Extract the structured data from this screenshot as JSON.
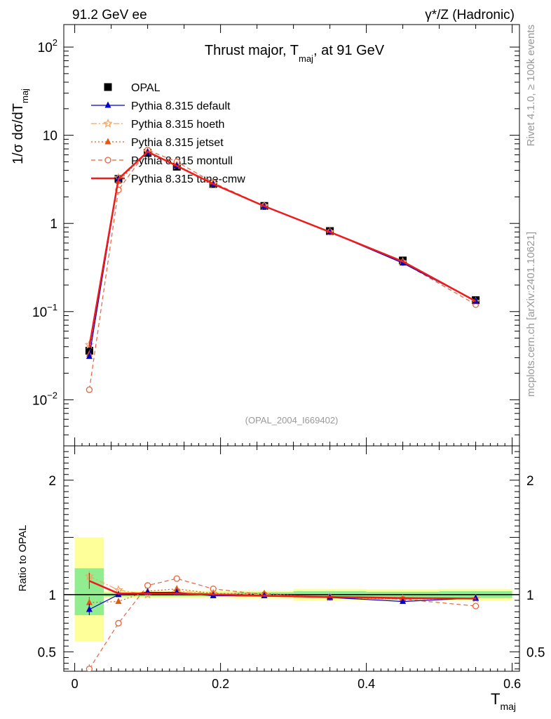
{
  "header": {
    "left": "91.2 GeV ee",
    "right": "γ*/Z (Hadronic)"
  },
  "side": {
    "rivet": "Rivet 4.1.0, ≥ 100k events",
    "mcplots": "mcplots.cern.ch [arXiv:2401.10621]"
  },
  "colors": {
    "opal": "#000000",
    "default": "#0000cc",
    "hoeth": "#f4a460",
    "jetset": "#e05a14",
    "montull": "#e8643c",
    "tunecmw": "#ee1c1c",
    "band_inner": "#90ee90",
    "band_outer": "#ffff99"
  },
  "chart_data": {
    "type": "line",
    "title_main": "Thrust major, T",
    "title_sub": "maj",
    "title_end": ", at 91 GeV",
    "analysis_tag": "(OPAL_2004_I669402)",
    "ylabel_main": "1/σ  dσ/dT",
    "ylabel_sub": "maj",
    "xlabel_main": "T",
    "xlabel_sub": "maj",
    "ratio_ylabel": "Ratio to OPAL",
    "xlim": [
      -0.015,
      0.61
    ],
    "ylim_log": [
      0.003,
      180
    ],
    "ratio_ylim": [
      0.33,
      2.3
    ],
    "main_yticks": [
      {
        "v": 0.01,
        "b": "10",
        "e": "−2"
      },
      {
        "v": 0.1,
        "b": "10",
        "e": "−1"
      },
      {
        "v": 1,
        "b": "1",
        "e": ""
      },
      {
        "v": 10,
        "b": "10",
        "e": ""
      },
      {
        "v": 100,
        "b": "10",
        "e": "2"
      }
    ],
    "ratio_yticks": [
      {
        "v": 0.5,
        "label": "0.5"
      },
      {
        "v": 1,
        "label": "1"
      },
      {
        "v": 2,
        "label": "2"
      }
    ],
    "xticks": [
      {
        "v": 0,
        "label": "0"
      },
      {
        "v": 0.2,
        "label": "0.2"
      },
      {
        "v": 0.4,
        "label": "0.4"
      },
      {
        "v": 0.6,
        "label": "0.6"
      }
    ],
    "x": [
      0.02,
      0.06,
      0.1,
      0.14,
      0.19,
      0.26,
      0.35,
      0.45,
      0.55
    ],
    "data": {
      "name": "OPAL",
      "values": [
        0.036,
        3.2,
        6.3,
        4.4,
        2.8,
        1.58,
        0.82,
        0.38,
        0.135
      ],
      "errors": [
        0.003,
        0.12,
        0.15,
        0.1,
        0.05,
        0.03,
        0.015,
        0.008,
        0.004
      ]
    },
    "ratio_bands": [
      {
        "x0": 0.0,
        "x1": 0.04,
        "inner": [
          0.82,
          1.23
        ],
        "outer": [
          0.59,
          1.5
        ]
      },
      {
        "x0": 0.04,
        "x1": 0.08,
        "inner": [
          0.985,
          1.015
        ],
        "outer": [
          0.97,
          1.03
        ]
      },
      {
        "x0": 0.08,
        "x1": 0.12,
        "inner": [
          0.985,
          1.015
        ],
        "outer": [
          0.97,
          1.03
        ]
      },
      {
        "x0": 0.12,
        "x1": 0.16,
        "inner": [
          0.985,
          1.015
        ],
        "outer": [
          0.97,
          1.03
        ]
      },
      {
        "x0": 0.16,
        "x1": 0.22,
        "inner": [
          0.985,
          1.015
        ],
        "outer": [
          0.97,
          1.03
        ]
      },
      {
        "x0": 0.22,
        "x1": 0.3,
        "inner": [
          0.98,
          1.02
        ],
        "outer": [
          0.965,
          1.035
        ]
      },
      {
        "x0": 0.3,
        "x1": 0.4,
        "inner": [
          0.97,
          1.03
        ],
        "outer": [
          0.95,
          1.05
        ]
      },
      {
        "x0": 0.4,
        "x1": 0.5,
        "inner": [
          0.975,
          1.025
        ],
        "outer": [
          0.955,
          1.045
        ]
      },
      {
        "x0": 0.5,
        "x1": 0.6,
        "inner": [
          0.97,
          1.03
        ],
        "outer": [
          0.95,
          1.05
        ]
      }
    ],
    "series": [
      {
        "name": "Pythia 8.315 default",
        "key": "default",
        "marker": "triangle",
        "dash": "",
        "values": [
          0.031,
          3.2,
          6.4,
          4.5,
          2.78,
          1.56,
          0.8,
          0.355,
          0.131
        ],
        "ratio": [
          0.87,
          1.0,
          1.02,
          1.02,
          0.99,
          0.99,
          0.975,
          0.94,
          0.97
        ],
        "ratio_err": [
          0.05,
          0.01,
          0.01,
          0.01,
          0.01,
          0.01,
          0.01,
          0.01,
          0.01
        ]
      },
      {
        "name": "Pythia 8.315 hoeth",
        "key": "hoeth",
        "marker": "star",
        "dash": "8,3,2,3",
        "values": [
          0.042,
          3.3,
          6.5,
          4.55,
          2.82,
          1.58,
          0.8,
          0.365,
          0.13
        ],
        "ratio": [
          1.16,
          1.04,
          1.0,
          1.03,
          1.01,
          1.0,
          0.975,
          0.96,
          0.965
        ],
        "ratio_err": [
          0.05,
          0.01,
          0.01,
          0.01,
          0.01,
          0.01,
          0.01,
          0.01,
          0.01
        ]
      },
      {
        "name": "Pythia 8.315 jetset",
        "key": "jetset",
        "marker": "triangle",
        "dash": "2,3",
        "values": [
          0.033,
          3.0,
          6.5,
          4.6,
          2.82,
          1.58,
          0.8,
          0.365,
          0.13
        ],
        "ratio": [
          0.93,
          0.94,
          1.03,
          1.05,
          1.01,
          1.01,
          0.975,
          0.96,
          0.965
        ],
        "ratio_err": [
          0.05,
          0.01,
          0.01,
          0.01,
          0.01,
          0.01,
          0.01,
          0.01,
          0.01
        ]
      },
      {
        "name": "Pythia 8.315 montull",
        "key": "montull",
        "marker": "circle",
        "dash": "6,4",
        "values": [
          0.013,
          2.4,
          6.8,
          5.0,
          2.9,
          1.58,
          0.8,
          0.36,
          0.12
        ],
        "ratio": [
          0.35,
          0.75,
          1.08,
          1.14,
          1.05,
          1.0,
          0.975,
          0.96,
          0.9
        ],
        "ratio_err": [
          0.04,
          0.01,
          0.01,
          0.01,
          0.01,
          0.01,
          0.01,
          0.01,
          0.01
        ]
      },
      {
        "name": "Pythia 8.315 tune-cmw",
        "key": "tunecmw",
        "marker": "none",
        "dash": "",
        "values": [
          0.04,
          3.2,
          6.5,
          4.5,
          2.8,
          1.57,
          0.8,
          0.37,
          0.131
        ],
        "ratio": [
          1.12,
          1.01,
          1.01,
          1.01,
          1.0,
          0.99,
          0.98,
          0.97,
          0.965
        ],
        "ratio_err": [
          0.07,
          0.01,
          0.01,
          0.01,
          0.01,
          0.01,
          0.01,
          0.01,
          0.01
        ]
      }
    ]
  }
}
